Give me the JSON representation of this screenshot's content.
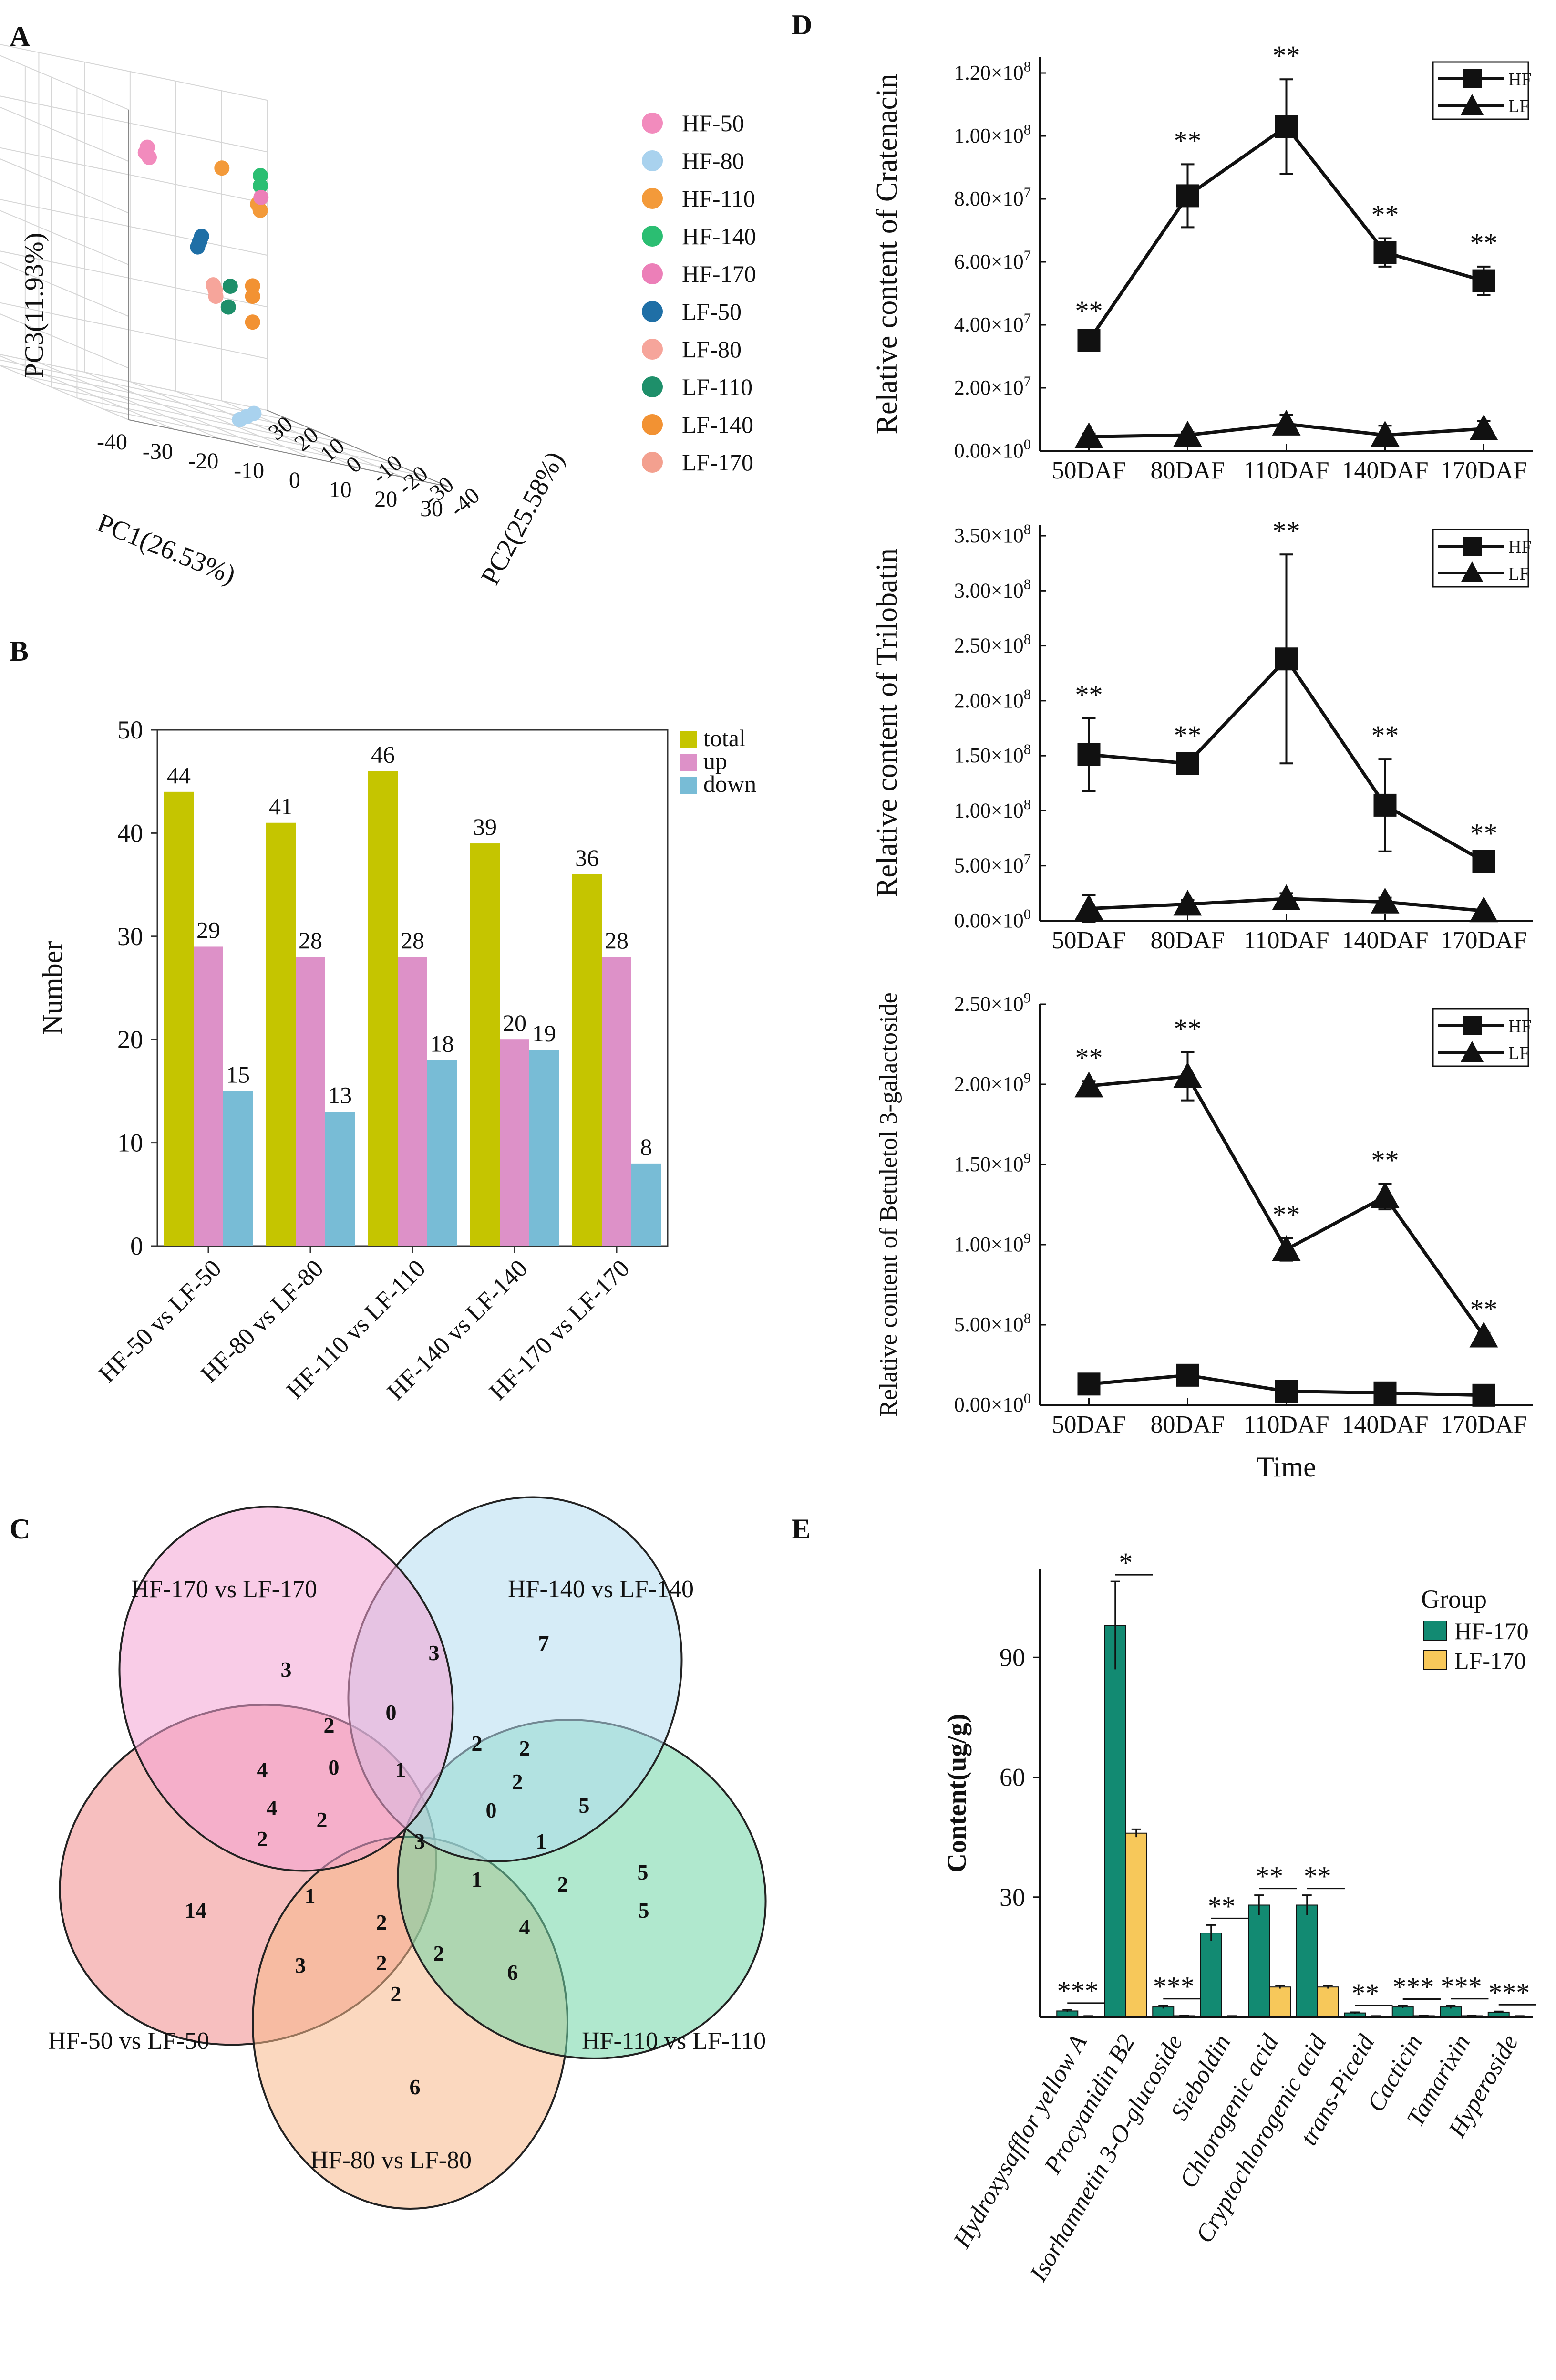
{
  "panel_labels": {
    "A": "A",
    "B": "B",
    "C": "C",
    "D": "D",
    "E": "E"
  },
  "colors": {
    "total": "#c5c500",
    "up": "#dd91c8",
    "down": "#78bcd6",
    "hf170": "#128a72",
    "lf170": "#f7c85a",
    "axis": "#111111",
    "venn": [
      "#f4a3d4",
      "#b4dcf0",
      "#6fd5a6",
      "#f7b88a",
      "#f08b8b"
    ]
  },
  "chart_data": [
    {
      "id": "A",
      "type": "scatter",
      "dims": 3,
      "xlabel": "PC1(26.53%)",
      "ylabel": "PC2(25.58%)",
      "zlabel": "PC3(11.93%)",
      "x_ticks": [
        "-40",
        "-30",
        "-20",
        "-10",
        "0",
        "10",
        "20",
        "30"
      ],
      "y_ticks": [
        "-40",
        "-30",
        "-20",
        "-10",
        "0",
        "10",
        "20",
        "30"
      ],
      "z_ticks": [
        "30",
        "20",
        "10",
        "0",
        "-10",
        "-20",
        "-30"
      ],
      "legend": [
        {
          "name": "HF-50",
          "color": "#f28bbd"
        },
        {
          "name": "HF-80",
          "color": "#a9d2ee"
        },
        {
          "name": "HF-110",
          "color": "#f39a3a"
        },
        {
          "name": "HF-140",
          "color": "#2bbe72"
        },
        {
          "name": "HF-170",
          "color": "#ec7fb8"
        },
        {
          "name": "LF-50",
          "color": "#1f6fa6"
        },
        {
          "name": "LF-80",
          "color": "#f6a59b"
        },
        {
          "name": "LF-110",
          "color": "#1e8f6a"
        },
        {
          "name": "LF-140",
          "color": "#f29233"
        },
        {
          "name": "LF-170",
          "color": "#f3a08f"
        }
      ],
      "points": [
        {
          "group": "HF-50",
          "pc1": -28,
          "pc2": -26,
          "pc3": 22
        },
        {
          "group": "HF-50",
          "pc1": -27,
          "pc2": -25,
          "pc3": 20
        },
        {
          "group": "HF-50",
          "pc1": -29,
          "pc2": -27,
          "pc3": 21
        },
        {
          "group": "LF-50",
          "pc1": -12,
          "pc2": -18,
          "pc3": 5
        },
        {
          "group": "LF-50",
          "pc1": -11,
          "pc2": -17,
          "pc3": 6
        },
        {
          "group": "LF-50",
          "pc1": -13,
          "pc2": -19,
          "pc3": 4
        },
        {
          "group": "HF-80",
          "pc1": 4,
          "pc2": -8,
          "pc3": -28
        },
        {
          "group": "HF-80",
          "pc1": 5,
          "pc2": -9,
          "pc3": -27
        },
        {
          "group": "HF-80",
          "pc1": 3,
          "pc2": -7,
          "pc3": -29
        },
        {
          "group": "LF-80",
          "pc1": 8,
          "pc2": 12,
          "pc3": -6
        },
        {
          "group": "LF-80",
          "pc1": 9,
          "pc2": 13,
          "pc3": -7
        },
        {
          "group": "LF-80",
          "pc1": 8,
          "pc2": 11,
          "pc3": -8
        },
        {
          "group": "LF-110",
          "pc1": 14,
          "pc2": 16,
          "pc3": -6
        },
        {
          "group": "LF-110",
          "pc1": 13,
          "pc2": 15,
          "pc3": -10
        },
        {
          "group": "HF-110",
          "pc1": 20,
          "pc2": 15,
          "pc3": 10
        },
        {
          "group": "HF-110",
          "pc1": 20,
          "pc2": 16,
          "pc3": 11
        },
        {
          "group": "HF-140",
          "pc1": 24,
          "pc2": 22,
          "pc3": 14
        },
        {
          "group": "HF-140",
          "pc1": 24,
          "pc2": 22,
          "pc3": 16
        },
        {
          "group": "HF-170",
          "pc1": 23,
          "pc2": 20,
          "pc3": 12
        },
        {
          "group": "LF-140",
          "pc1": 24,
          "pc2": 25,
          "pc3": -6
        },
        {
          "group": "LF-140",
          "pc1": 24,
          "pc2": 25,
          "pc3": -8
        },
        {
          "group": "LF-140",
          "pc1": 24,
          "pc2": 25,
          "pc3": -13
        },
        {
          "group": "HF-110",
          "pc1": 15,
          "pc2": 21,
          "pc3": 16
        }
      ]
    },
    {
      "id": "B",
      "type": "bar",
      "ylabel": "Number",
      "ylim": [
        0,
        50
      ],
      "yticks": [
        0,
        10,
        20,
        30,
        40,
        50
      ],
      "categories": [
        "HF-50 vs LF-50",
        "HF-80 vs LF-80",
        "HF-110 vs LF-110",
        "HF-140 vs LF-140",
        "HF-170 vs LF-170"
      ],
      "series": [
        {
          "name": "total",
          "values": [
            44,
            41,
            46,
            39,
            36
          ]
        },
        {
          "name": "up",
          "values": [
            29,
            28,
            28,
            20,
            28
          ]
        },
        {
          "name": "down",
          "values": [
            15,
            13,
            18,
            19,
            8
          ]
        }
      ],
      "legend_position": "top-right"
    },
    {
      "id": "C",
      "type": "venn",
      "sets": [
        "HF-170 vs LF-170",
        "HF-140 vs LF-140",
        "HF-110 vs LF-110",
        "HF-80 vs LF-80",
        "HF-50 vs LF-50"
      ],
      "region_counts": [
        "3",
        "3",
        "7",
        "0",
        "2",
        "2",
        "2",
        "2",
        "0",
        "1",
        "4",
        "0",
        "4",
        "2",
        "3",
        "1",
        "5",
        "1",
        "2",
        "5",
        "5",
        "4",
        "14",
        "2",
        "2",
        "1",
        "2",
        "3",
        "2",
        "2",
        "6",
        "6"
      ]
    },
    {
      "id": "D1",
      "type": "line",
      "ylabel": "Relative content of Cratenacin",
      "categories": [
        "50DAF",
        "80DAF",
        "110DAF",
        "140DAF",
        "170DAF"
      ],
      "ylim": [
        0,
        125000000
      ],
      "yticks": [
        {
          "v": 0,
          "m": "0.00",
          "e": "0"
        },
        {
          "v": 20000000,
          "m": "2.00",
          "e": "7"
        },
        {
          "v": 40000000,
          "m": "4.00",
          "e": "7"
        },
        {
          "v": 60000000,
          "m": "6.00",
          "e": "7"
        },
        {
          "v": 80000000,
          "m": "8.00",
          "e": "7"
        },
        {
          "v": 100000000,
          "m": "1.00",
          "e": "8"
        },
        {
          "v": 120000000,
          "m": "1.20",
          "e": "8"
        }
      ],
      "series": [
        {
          "name": "HF",
          "marker": "square",
          "values": [
            35000000,
            81000000,
            103000000,
            63000000,
            54000000
          ],
          "err": [
            2000000,
            10000000,
            15000000,
            4500000,
            4500000
          ]
        },
        {
          "name": "LF",
          "marker": "triangle",
          "values": [
            4500000,
            5000000,
            8500000,
            5000000,
            7000000
          ],
          "err": [
            1000000,
            1000000,
            3000000,
            3000000,
            2500000
          ]
        }
      ],
      "annotations": [
        "**",
        "**",
        "**",
        "**",
        "**"
      ],
      "annotation_on": "HF"
    },
    {
      "id": "D2",
      "type": "line",
      "ylabel": "Relative content of Trilobatin",
      "categories": [
        "50DAF",
        "80DAF",
        "110DAF",
        "140DAF",
        "170DAF"
      ],
      "ylim": [
        0,
        360000000
      ],
      "yticks": [
        {
          "v": 0,
          "m": "0.00",
          "e": "0"
        },
        {
          "v": 50000000,
          "m": "5.00",
          "e": "7"
        },
        {
          "v": 100000000,
          "m": "1.00",
          "e": "8"
        },
        {
          "v": 150000000,
          "m": "1.50",
          "e": "8"
        },
        {
          "v": 200000000,
          "m": "2.00",
          "e": "8"
        },
        {
          "v": 250000000,
          "m": "2.50",
          "e": "8"
        },
        {
          "v": 300000000,
          "m": "3.00",
          "e": "8"
        },
        {
          "v": 350000000,
          "m": "3.50",
          "e": "8"
        }
      ],
      "series": [
        {
          "name": "HF",
          "marker": "square",
          "values": [
            151000000,
            143000000,
            238000000,
            105000000,
            54000000
          ],
          "err": [
            33000000,
            4000000,
            95000000,
            42000000,
            4000000
          ]
        },
        {
          "name": "LF",
          "marker": "triangle",
          "values": [
            11000000,
            15000000,
            20000000,
            17000000,
            9000000
          ],
          "err": [
            12000000,
            4000000,
            5000000,
            4000000,
            2000000
          ]
        }
      ],
      "annotations": [
        "**",
        "**",
        "**",
        "**",
        "**"
      ],
      "annotation_on": "HF"
    },
    {
      "id": "D3",
      "type": "line",
      "ylabel": "Relative content of Betuletol 3-galactoside",
      "xlabel": "Time",
      "categories": [
        "50DAF",
        "80DAF",
        "110DAF",
        "140DAF",
        "170DAF"
      ],
      "ylim": [
        0,
        2500000000
      ],
      "yticks": [
        {
          "v": 0,
          "m": "0.00",
          "e": "0"
        },
        {
          "v": 500000000,
          "m": "5.00",
          "e": "8"
        },
        {
          "v": 1000000000,
          "m": "1.00",
          "e": "9"
        },
        {
          "v": 1500000000,
          "m": "1.50",
          "e": "9"
        },
        {
          "v": 2000000000,
          "m": "2.00",
          "e": "9"
        },
        {
          "v": 2500000000,
          "m": "2.50",
          "e": "9"
        }
      ],
      "series": [
        {
          "name": "HF",
          "marker": "square",
          "values": [
            130000000,
            185000000,
            85000000,
            75000000,
            60000000
          ],
          "err": [
            10000000,
            10000000,
            10000000,
            10000000,
            10000000
          ]
        },
        {
          "name": "LF",
          "marker": "triangle",
          "values": [
            1990000000,
            2050000000,
            970000000,
            1300000000,
            430000000
          ],
          "err": [
            30000000,
            150000000,
            70000000,
            80000000,
            20000000
          ]
        }
      ],
      "annotations": [
        "**",
        "**",
        "**",
        "**",
        "**"
      ],
      "annotation_on": "LF"
    },
    {
      "id": "E",
      "type": "bar",
      "ylabel": "Content(ug/g)",
      "ylim": [
        0,
        112
      ],
      "yticks": [
        30,
        60,
        90
      ],
      "legend_title": "Group",
      "categories": [
        "Hydroxysafflor yellow A",
        "Procyanidin B2",
        "Isorhamnetin 3-O-glucoside",
        "Sieboldin",
        "Chlorogenic acid",
        "Cryptochlorogenic acid",
        "trans-Piceid",
        "Cacticin",
        "Tamarixin",
        "Hyperoside"
      ],
      "series": [
        {
          "name": "HF-170",
          "values": [
            1.5,
            98,
            2.5,
            21,
            28,
            28,
            1.0,
            2.5,
            2.5,
            1.2
          ],
          "err": [
            0.3,
            11,
            0.4,
            2,
            2.5,
            2.5,
            0.2,
            0.3,
            0.4,
            0.2
          ]
        },
        {
          "name": "LF-170",
          "values": [
            0.2,
            46,
            0.3,
            0.2,
            7.5,
            7.5,
            0.2,
            0.3,
            0.3,
            0.2
          ],
          "err": [
            0.05,
            1,
            0.05,
            0.05,
            0.4,
            0.4,
            0.05,
            0.05,
            0.05,
            0.05
          ]
        }
      ],
      "significance": [
        "***",
        "*",
        "***",
        "**",
        "**",
        "**",
        "**",
        "***",
        "***",
        "***"
      ]
    }
  ]
}
